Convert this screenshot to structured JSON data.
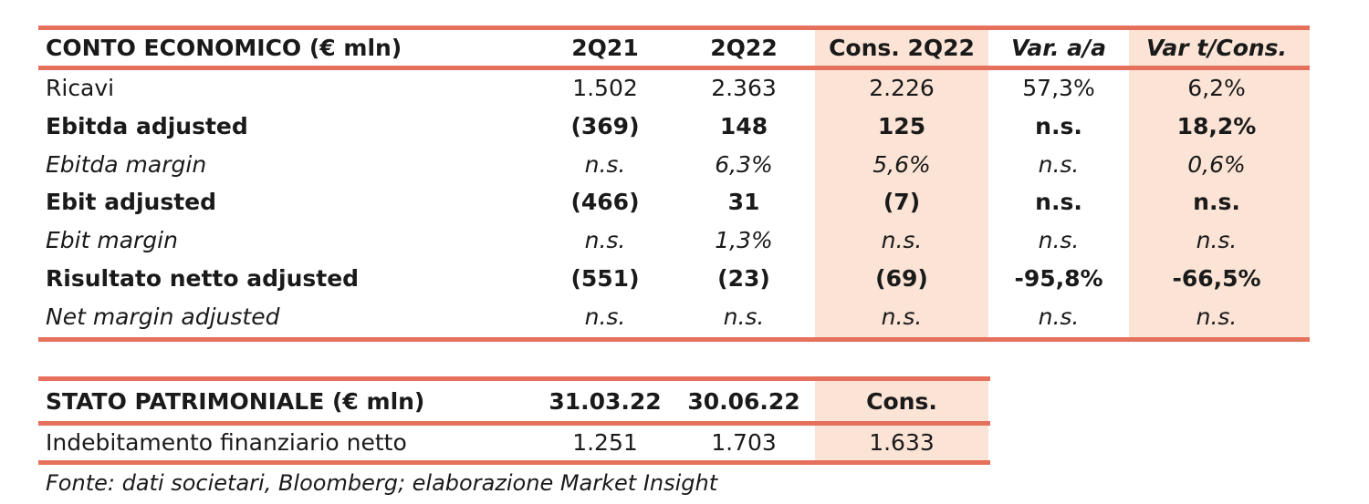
{
  "table1": {
    "header": [
      "CONTO ECONOMICO (€ mln)",
      "2Q21",
      "2Q22",
      "Cons. 2Q22",
      "Var. a/a",
      "Var t/Cons."
    ],
    "rows": [
      [
        "Ricavi",
        "1.502",
        "2.363",
        "2.226",
        "57,3%",
        "6,2%"
      ],
      [
        "Ebitda adjusted",
        "(369)",
        "148",
        "125",
        "n.s.",
        "18,2%"
      ],
      [
        "Ebitda margin",
        "n.s.",
        "6,3%",
        "5,6%",
        "n.s.",
        "0,6%"
      ],
      [
        "Ebit adjusted",
        "(466)",
        "31",
        "(7)",
        "n.s.",
        "n.s."
      ],
      [
        "Ebit margin",
        "n.s.",
        "1,3%",
        "n.s.",
        "n.s.",
        "n.s."
      ],
      [
        "Risultato netto adjusted",
        "(551)",
        "(23)",
        "(69)",
        "-95,8%",
        "-66,5%"
      ],
      [
        "Net margin adjusted",
        "n.s.",
        "n.s.",
        "n.s.",
        "n.s.",
        "n.s."
      ]
    ]
  },
  "table2": {
    "header": [
      "STATO PATRIMONIALE (€ mln)",
      "31.03.22",
      "30.06.22",
      "Cons."
    ],
    "rows": [
      [
        "Indebitamento finanziario netto",
        "1.251",
        "1.703",
        "1.633"
      ]
    ]
  },
  "footer": "Fonte: dati societari, Bloomberg; elaborazione Market Insight"
}
